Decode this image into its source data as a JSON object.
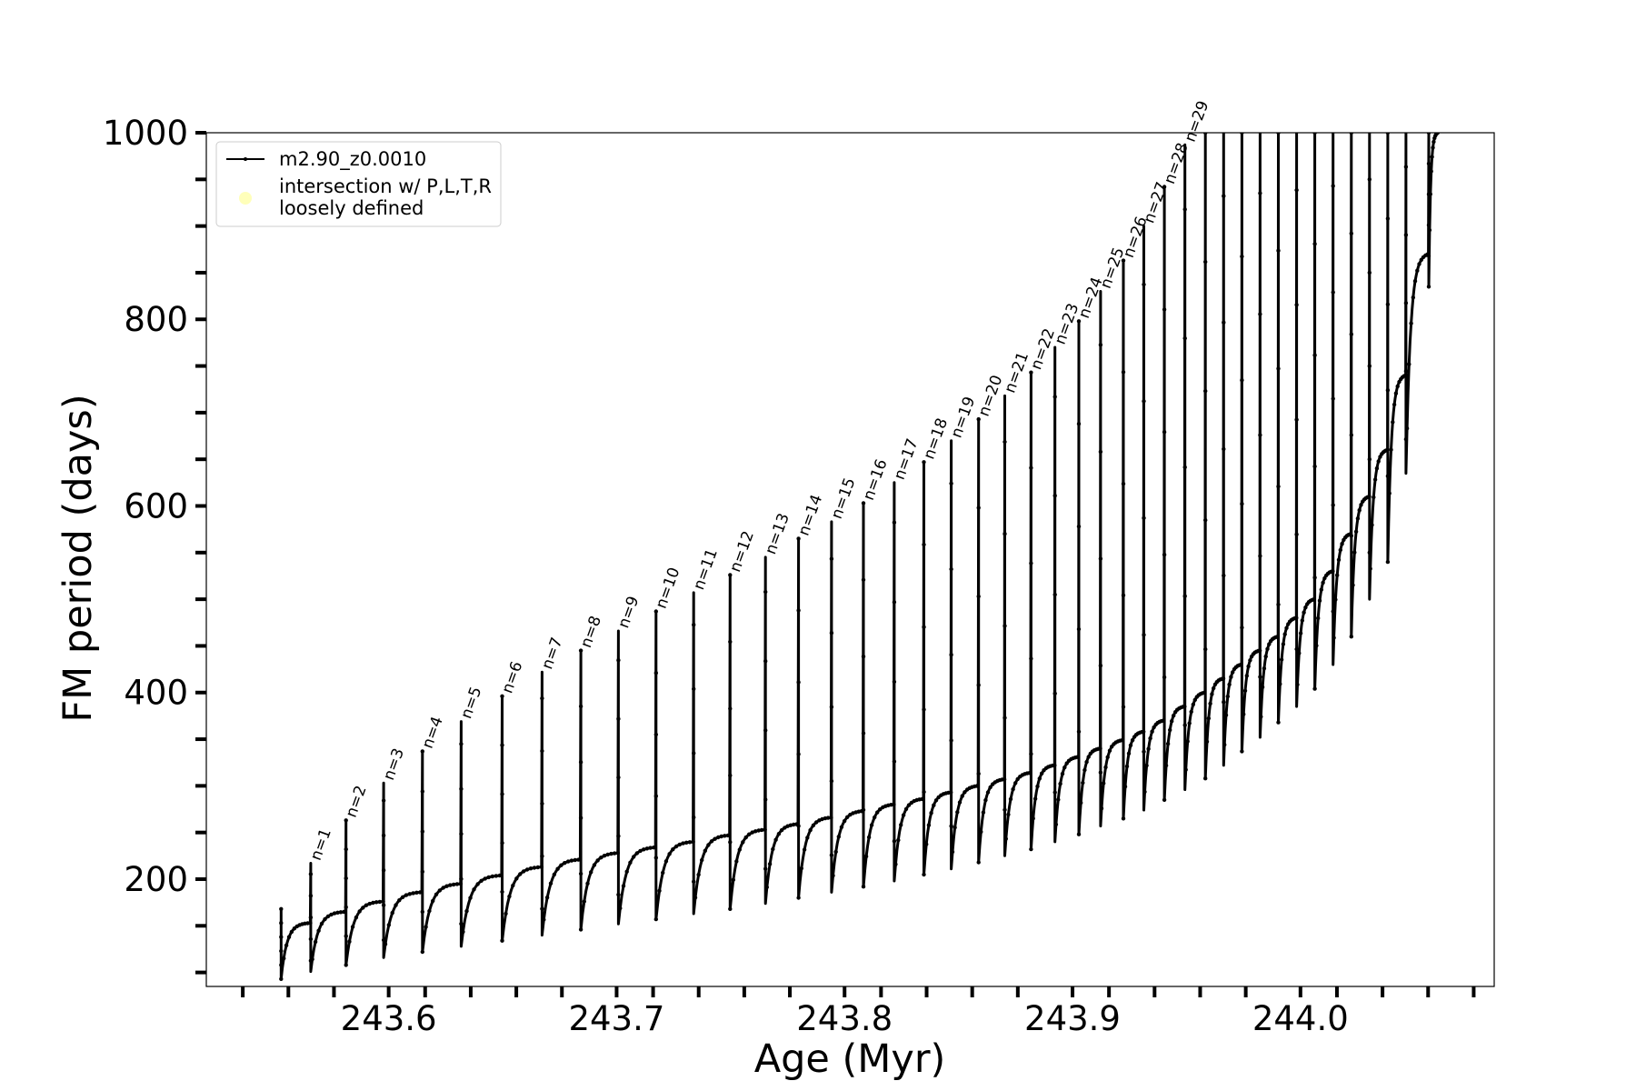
{
  "chart_data": {
    "type": "line",
    "xlabel": "Age (Myr)",
    "ylabel": "FM period (days)",
    "xlim": [
      243.52,
      244.085
    ],
    "ylim": [
      85,
      1000
    ],
    "x_ticks": [
      243.6,
      243.7,
      243.8,
      243.9,
      244.0
    ],
    "x_tick_labels": [
      "243.6",
      "243.7",
      "243.8",
      "243.9",
      "244.0"
    ],
    "x_minor_ticks": [
      243.536,
      243.556,
      243.576,
      243.616,
      243.636,
      243.656,
      243.676,
      243.716,
      243.736,
      243.756,
      243.776,
      243.816,
      243.836,
      243.856,
      243.876,
      243.916,
      243.936,
      243.956,
      243.976,
      244.016,
      244.036,
      244.056,
      244.076
    ],
    "y_ticks": [
      200,
      400,
      600,
      800,
      1000
    ],
    "y_tick_labels": [
      "200",
      "400",
      "600",
      "800",
      "1000"
    ],
    "y_minor_ticks": [
      100,
      150,
      250,
      300,
      350,
      450,
      500,
      550,
      650,
      700,
      750,
      850,
      900,
      950
    ],
    "grid": false,
    "legend_position": "upper-left",
    "legend": [
      {
        "label": "m2.90_z0.0010",
        "color": "#000000",
        "marker": "line"
      },
      {
        "label": "intersection w/ P,L,T,R\nloosely defined",
        "color": "#ffffb3",
        "marker": "dot"
      }
    ],
    "series": [
      {
        "name": "m2.90_z0.0010",
        "color": "#000000",
        "pulse_ages": [
          243.5528,
          243.5658,
          243.5813,
          243.5978,
          243.6148,
          243.6318,
          243.6498,
          243.6673,
          243.6843,
          243.7008,
          243.7173,
          243.7338,
          243.7498,
          243.7653,
          243.7798,
          243.7943,
          243.8083,
          243.8218,
          243.8348,
          243.8468,
          243.8588,
          243.8703,
          243.8818,
          243.8923,
          243.9028,
          243.9123,
          243.9223,
          243.9313,
          243.9403,
          243.9493,
          243.9583,
          243.9663,
          243.9743,
          243.9823,
          243.9903,
          243.9983,
          244.0063,
          244.0143,
          244.0223,
          244.0303,
          244.0383,
          244.0463,
          244.0563
        ],
        "pulse_labels": [
          "",
          "n=1",
          "n=2",
          "n=3",
          "n=4",
          "n=5",
          "n=6",
          "n=7",
          "n=8",
          "n=9",
          "n=10",
          "n=11",
          "n=12",
          "n=13",
          "n=14",
          "n=15",
          "n=16",
          "n=17",
          "n=18",
          "n=19",
          "n=20",
          "n=21",
          "n=22",
          "n=23",
          "n=24",
          "n=25",
          "n=26",
          "n=27",
          "n=28",
          "n=29",
          "",
          "",
          "",
          "",
          "",
          "",
          "",
          "",
          "",
          "",
          "",
          "",
          ""
        ],
        "peak_periods": [
          168,
          217,
          263,
          303,
          337,
          369,
          396,
          422,
          445,
          466,
          487,
          507,
          526,
          545,
          565,
          583,
          603,
          625,
          647,
          670,
          693,
          718,
          743,
          770,
          798,
          830,
          863,
          900,
          942,
          987,
          1000,
          1000,
          1000,
          1000,
          1000,
          1000,
          1000,
          1000,
          1000,
          1000,
          1000,
          1000,
          1000
        ],
        "min_periods": [
          93,
          101,
          108,
          116,
          122,
          128,
          134,
          140,
          146,
          152,
          157,
          163,
          168,
          174,
          180,
          186,
          192,
          198,
          205,
          211,
          218,
          225,
          232,
          240,
          248,
          257,
          265,
          274,
          285,
          296,
          308,
          322,
          337,
          352,
          368,
          385,
          404,
          430,
          460,
          500,
          540,
          635,
          835
        ],
        "plateau_periods": [
          153,
          165,
          176,
          186,
          195,
          204,
          213,
          221,
          228,
          234,
          240,
          247,
          253,
          259,
          266,
          273,
          280,
          286,
          293,
          300,
          307,
          314,
          322,
          331,
          340,
          349,
          358,
          370,
          385,
          400,
          415,
          430,
          445,
          460,
          480,
          500,
          530,
          570,
          610,
          660,
          740,
          870,
          1000
        ]
      }
    ]
  }
}
